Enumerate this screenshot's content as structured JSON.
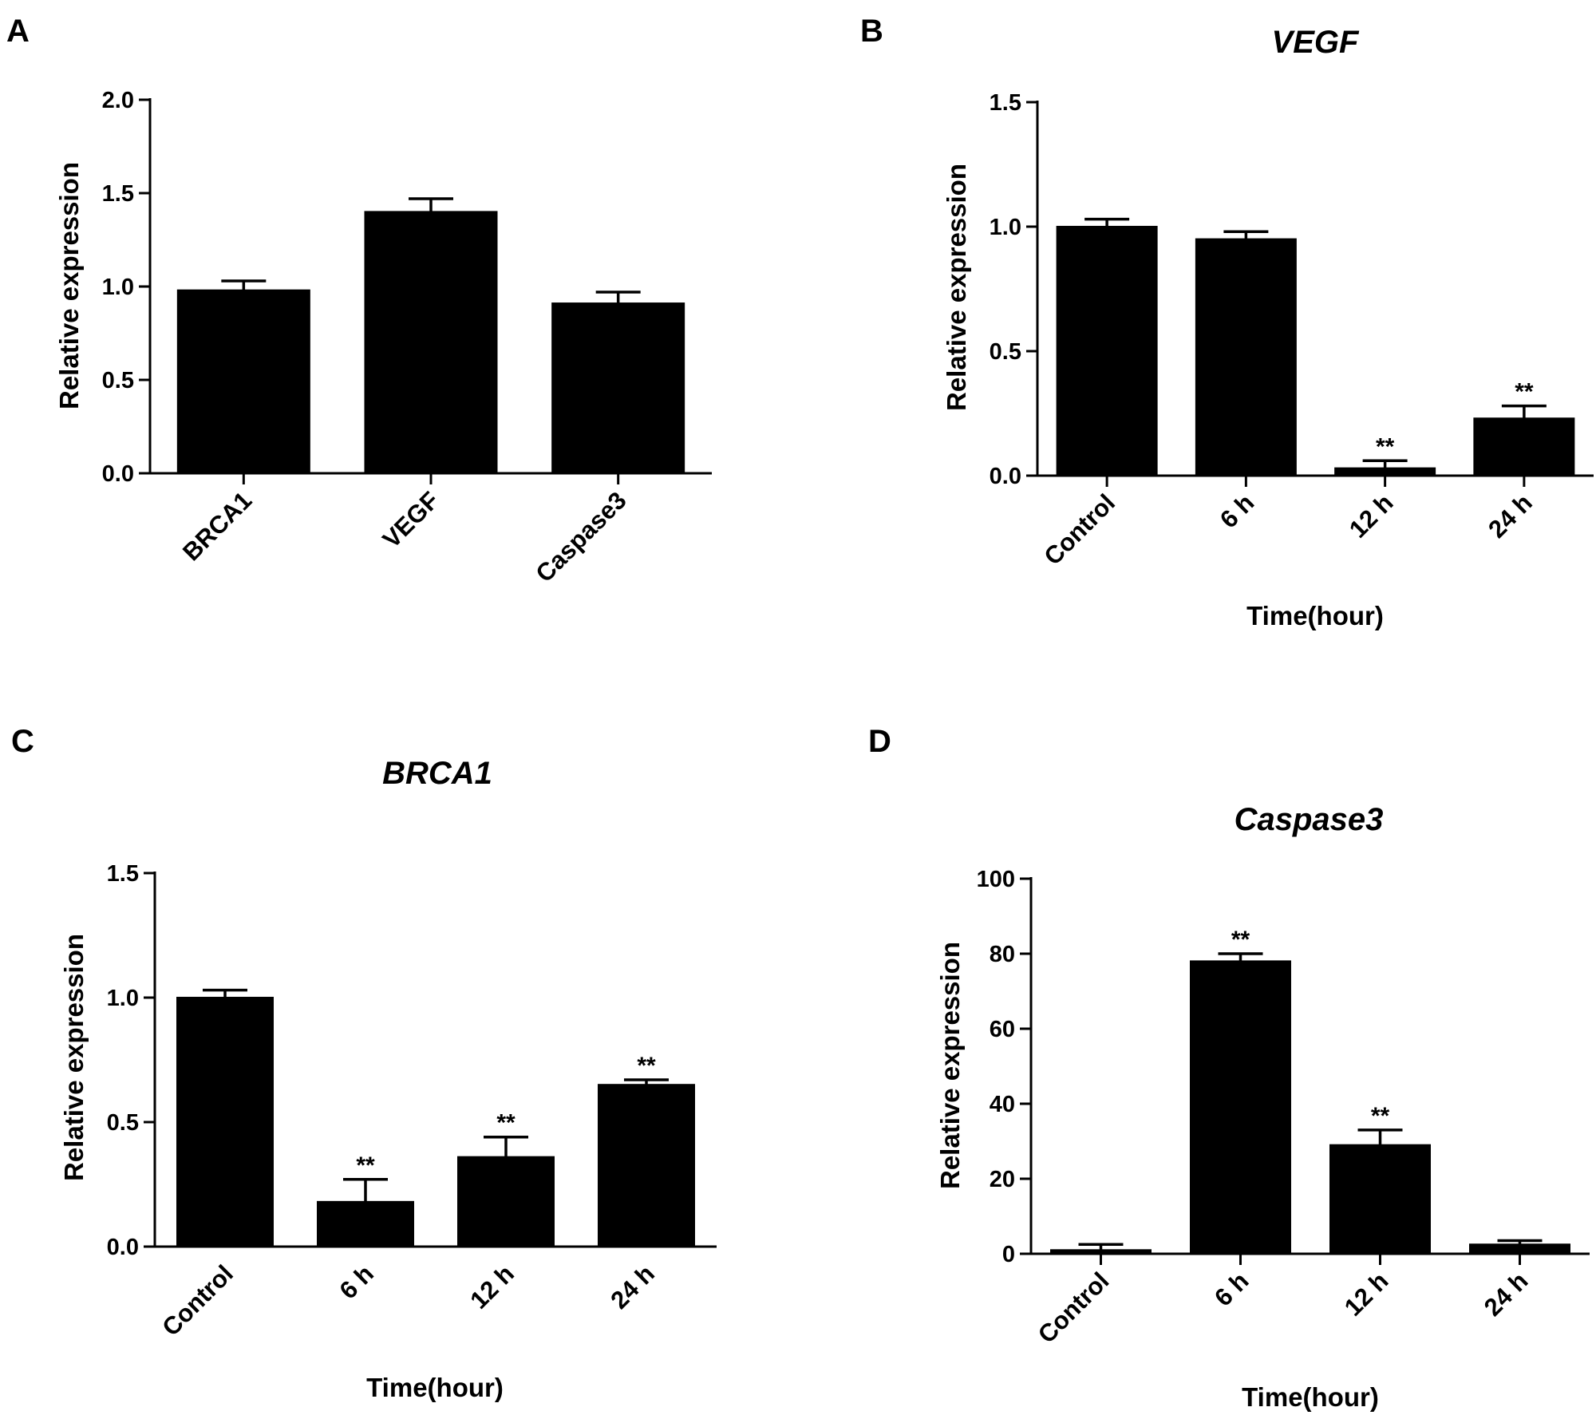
{
  "chart_data": [
    {
      "panel": "A",
      "type": "bar",
      "title": "",
      "xlabel": "",
      "ylabel": "Relative expression",
      "ylim": [
        0,
        2.0
      ],
      "yticks": [
        0.0,
        0.5,
        1.0,
        1.5,
        2.0
      ],
      "ytick_labels": [
        "0.0",
        "0.5",
        "1.0",
        "1.5",
        "2.0"
      ],
      "categories": [
        "BRCA1",
        "VEGF",
        "Caspase3"
      ],
      "values": [
        0.98,
        1.4,
        0.91
      ],
      "errors": [
        0.05,
        0.07,
        0.06
      ],
      "annotations": [
        "",
        "",
        ""
      ],
      "bar_color": "#000000",
      "grid": false
    },
    {
      "panel": "B",
      "type": "bar",
      "title": "VEGF",
      "xlabel": "Time(hour)",
      "ylabel": "Relative expression",
      "ylim": [
        0,
        1.5
      ],
      "yticks": [
        0.0,
        0.5,
        1.0,
        1.5
      ],
      "ytick_labels": [
        "0.0",
        "0.5",
        "1.0",
        "1.5"
      ],
      "categories": [
        "Control",
        "6 h",
        "12 h",
        "24 h"
      ],
      "values": [
        1.0,
        0.95,
        0.03,
        0.23
      ],
      "errors": [
        0.03,
        0.03,
        0.03,
        0.05
      ],
      "annotations": [
        "",
        "",
        "**",
        "**"
      ],
      "bar_color": "#000000",
      "grid": false
    },
    {
      "panel": "C",
      "type": "bar",
      "title": "BRCA1",
      "xlabel": "Time(hour)",
      "ylabel": "Relative expression",
      "ylim": [
        0,
        1.5
      ],
      "yticks": [
        0.0,
        0.5,
        1.0,
        1.5
      ],
      "ytick_labels": [
        "0.0",
        "0.5",
        "1.0",
        "1.5"
      ],
      "categories": [
        "Control",
        "6 h",
        "12 h",
        "24 h"
      ],
      "values": [
        1.0,
        0.18,
        0.36,
        0.65
      ],
      "errors": [
        0.03,
        0.09,
        0.08,
        0.02
      ],
      "annotations": [
        "",
        "**",
        "**",
        "**"
      ],
      "bar_color": "#000000",
      "grid": false
    },
    {
      "panel": "D",
      "type": "bar",
      "title": "Caspase3",
      "xlabel": "Time(hour)",
      "ylabel": "Relative expression",
      "ylim": [
        0,
        100
      ],
      "yticks": [
        0,
        20,
        40,
        60,
        80,
        100
      ],
      "ytick_labels": [
        "0",
        "20",
        "40",
        "60",
        "80",
        "100"
      ],
      "categories": [
        "Control",
        "6 h",
        "12 h",
        "24 h"
      ],
      "values": [
        1.0,
        78,
        29,
        2.5
      ],
      "errors": [
        1.5,
        2,
        4,
        1
      ],
      "annotations": [
        "",
        "**",
        "**",
        ""
      ],
      "bar_color": "#000000",
      "grid": false
    }
  ]
}
